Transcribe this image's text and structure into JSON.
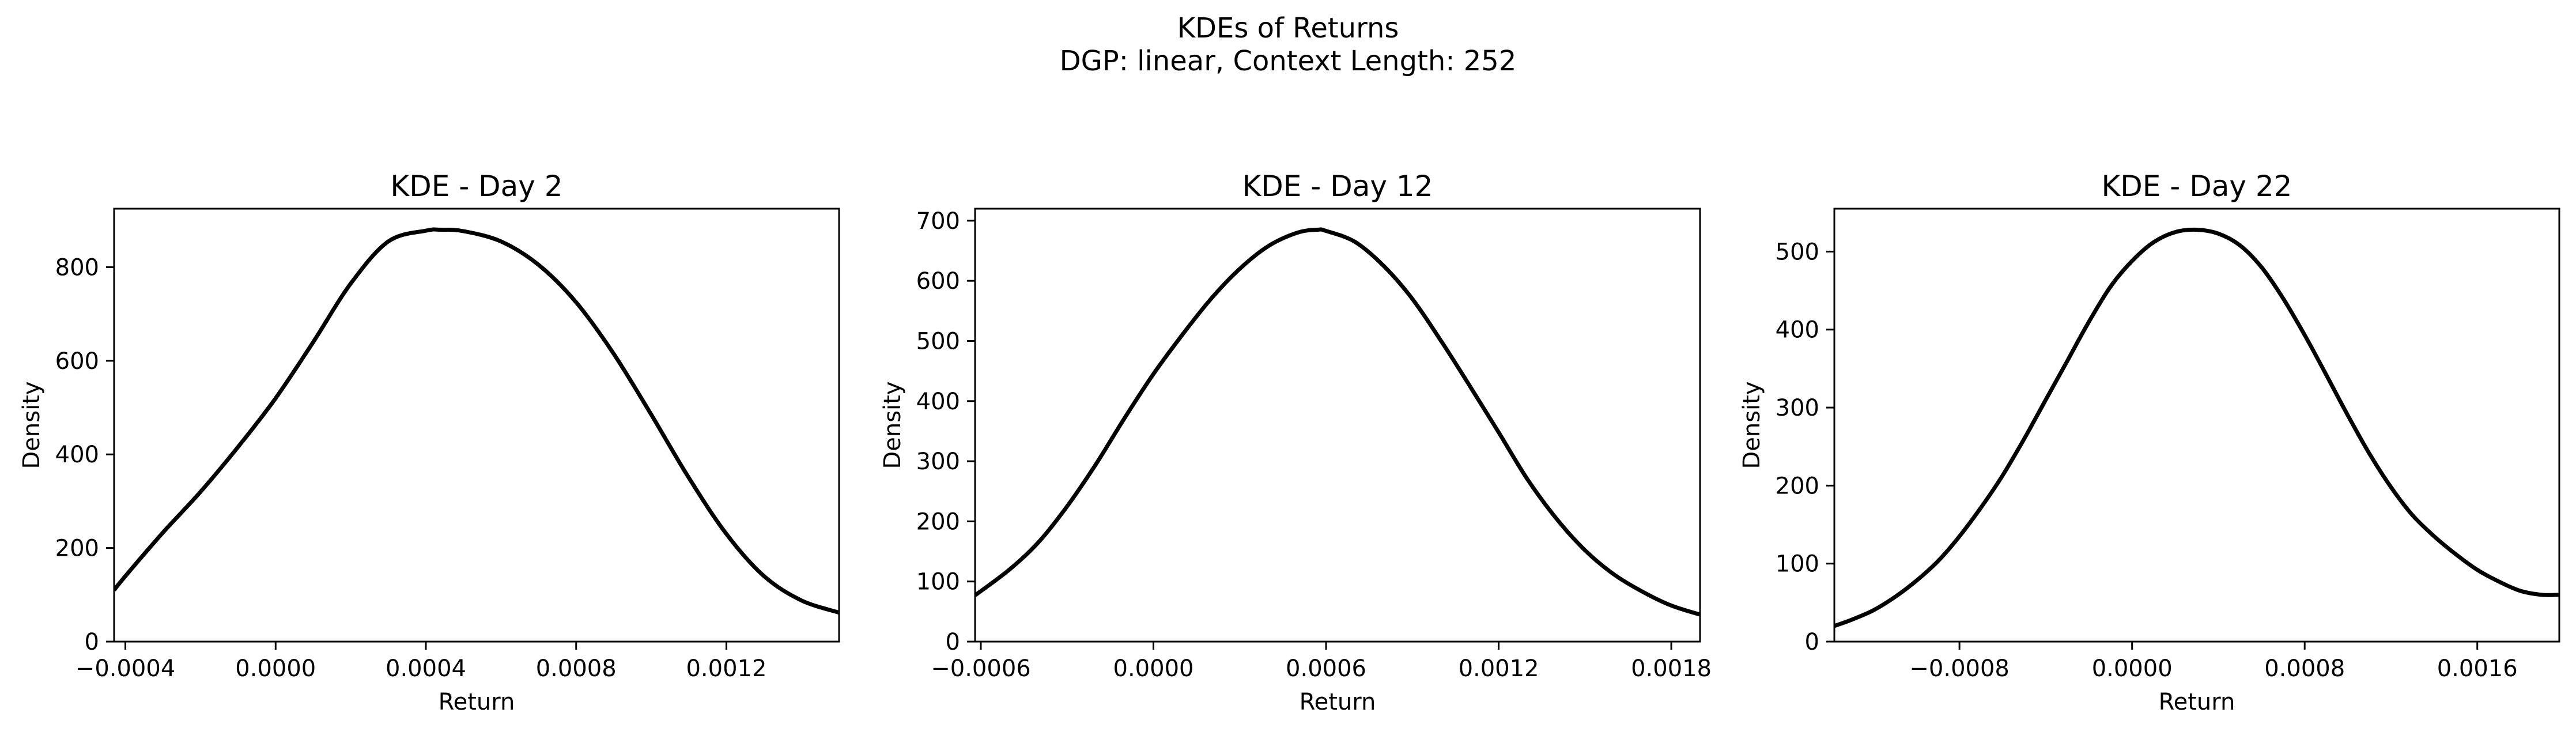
{
  "figure": {
    "title_line1": "KDEs of Returns",
    "title_line2": "DGP: linear, Context Length: 252"
  },
  "chart_data": [
    {
      "type": "line",
      "title": "KDE - Day 2",
      "xlabel": "Return",
      "ylabel": "Density",
      "xlim": [
        -0.00043,
        0.0015
      ],
      "ylim": [
        0,
        925
      ],
      "xticks": [
        -0.0004,
        0.0,
        0.0004,
        0.0008,
        0.0012
      ],
      "xtick_labels": [
        "−0.0004",
        "0.0000",
        "0.0004",
        "0.0008",
        "0.0012"
      ],
      "yticks": [
        0,
        200,
        400,
        600,
        800
      ],
      "ytick_labels": [
        "0",
        "200",
        "400",
        "600",
        "800"
      ],
      "grid": false,
      "line_color": "#000000",
      "x": [
        -0.00043,
        -0.0004,
        -0.0003,
        -0.0002,
        -0.0001,
        0.0,
        0.0001,
        0.0002,
        0.0003,
        0.0004,
        0.00044,
        0.0005,
        0.0006,
        0.0007,
        0.0008,
        0.0009,
        0.001,
        0.0011,
        0.0012,
        0.0013,
        0.0014,
        0.0015
      ],
      "y": [
        110,
        140,
        233,
        320,
        416,
        520,
        640,
        765,
        855,
        878,
        880,
        877,
        855,
        805,
        725,
        615,
        485,
        350,
        230,
        140,
        88,
        62
      ]
    },
    {
      "type": "line",
      "title": "KDE - Day 12",
      "xlabel": "Return",
      "ylabel": "Density",
      "xlim": [
        -0.00062,
        0.0019
      ],
      "ylim": [
        0,
        720
      ],
      "xticks": [
        -0.0006,
        0.0,
        0.0006,
        0.0012,
        0.0018
      ],
      "xtick_labels": [
        "−0.0006",
        "0.0000",
        "0.0006",
        "0.0012",
        "0.0018"
      ],
      "yticks": [
        0,
        100,
        200,
        300,
        400,
        500,
        600,
        700
      ],
      "ytick_labels": [
        "0",
        "100",
        "200",
        "300",
        "400",
        "500",
        "600",
        "700"
      ],
      "grid": false,
      "line_color": "#000000",
      "x": [
        -0.00062,
        -0.0005,
        -0.0004,
        -0.0003,
        -0.0002,
        -0.0001,
        0.0,
        0.0001,
        0.0002,
        0.0003,
        0.0004,
        0.0005,
        0.00057,
        0.0006,
        0.0007,
        0.0008,
        0.0009,
        0.001,
        0.0011,
        0.0012,
        0.0013,
        0.0014,
        0.0015,
        0.0016,
        0.0017,
        0.0018,
        0.0019
      ],
      "y": [
        77,
        120,
        165,
        225,
        295,
        372,
        445,
        510,
        570,
        620,
        658,
        680,
        685,
        683,
        665,
        625,
        570,
        500,
        425,
        348,
        270,
        205,
        152,
        112,
        83,
        60,
        45
      ]
    },
    {
      "type": "line",
      "title": "KDE - Day 22",
      "xlabel": "Return",
      "ylabel": "Density",
      "xlim": [
        -0.00138,
        0.00198
      ],
      "ylim": [
        0,
        555
      ],
      "xticks": [
        -0.0008,
        0.0,
        0.0008,
        0.0016
      ],
      "xtick_labels": [
        "−0.0008",
        "0.0000",
        "0.0008",
        "0.0016"
      ],
      "yticks": [
        0,
        100,
        200,
        300,
        400,
        500
      ],
      "ytick_labels": [
        "0",
        "100",
        "200",
        "300",
        "400",
        "500"
      ],
      "grid": false,
      "line_color": "#000000",
      "x": [
        -0.00138,
        -0.0013,
        -0.0012,
        -0.0011,
        -0.001,
        -0.0009,
        -0.0008,
        -0.0007,
        -0.0006,
        -0.0005,
        -0.0004,
        -0.0003,
        -0.0002,
        -0.0001,
        0.0,
        0.0001,
        0.0002,
        0.0003,
        0.0004,
        0.0005,
        0.0006,
        0.0007,
        0.0008,
        0.0009,
        0.001,
        0.0011,
        0.0012,
        0.0013,
        0.0014,
        0.0015,
        0.0016,
        0.0017,
        0.0018,
        0.0019,
        0.00198
      ],
      "y": [
        20,
        28,
        40,
        57,
        78,
        103,
        135,
        172,
        213,
        260,
        310,
        360,
        410,
        455,
        488,
        512,
        525,
        528,
        523,
        508,
        480,
        440,
        393,
        342,
        290,
        241,
        198,
        162,
        135,
        112,
        92,
        77,
        65,
        60,
        60
      ]
    }
  ]
}
